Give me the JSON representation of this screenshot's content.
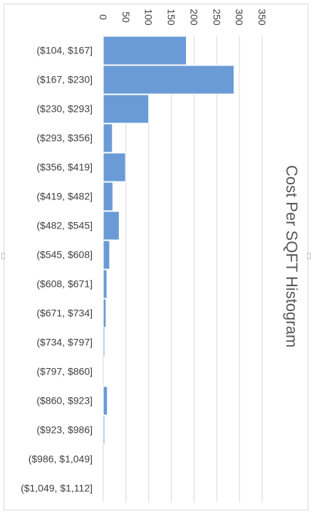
{
  "chart_data": {
    "type": "bar",
    "orientation": "horizontal",
    "title": "Cost Per SQFT Histogram",
    "categories": [
      "($104, $167]",
      "($167, $230]",
      "($230, $293]",
      "($293, $356]",
      "($356, $419]",
      "($419, $482]",
      "($482, $545]",
      "($545, $608]",
      "($608, $671]",
      "($671, $734]",
      "($734, $797]",
      "($797, $860]",
      "($860, $923]",
      "($923, $986]",
      "($986, $1,049]",
      "($1,049, $1,112]"
    ],
    "values": [
      183,
      288,
      100,
      20,
      49,
      21,
      35,
      14,
      8,
      6,
      3,
      0,
      9,
      3,
      0,
      0
    ],
    "xlim": [
      0,
      350
    ],
    "ticks": [
      0,
      50,
      100,
      150,
      200,
      250,
      300,
      350
    ],
    "grid": true,
    "legend": "none",
    "bar_color": "#6a9bd6",
    "bar_edge_color": "#ffffff",
    "grid_color": "#d9d9d9",
    "text_color": "#404040",
    "title_color": "#595959"
  }
}
